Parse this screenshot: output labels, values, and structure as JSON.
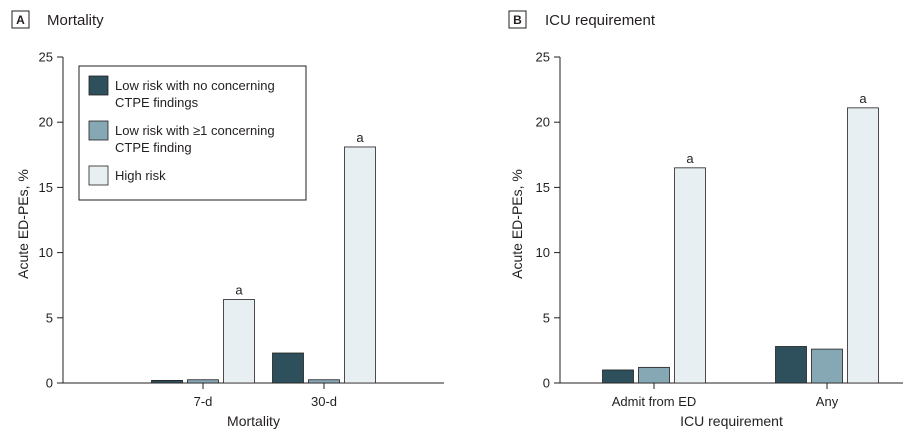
{
  "colors": {
    "low_no": "#2e4f5c",
    "low_one": "#86a8b5",
    "high": "#e8eff2",
    "stroke": "#231f20"
  },
  "chart_data": [
    {
      "type": "bar",
      "panel": "A",
      "title": "Mortality",
      "xlabel": "Mortality",
      "ylabel": "Acute ED-PEs, %",
      "ylim": [
        0,
        25
      ],
      "yticks": [
        0,
        5,
        10,
        15,
        20,
        25
      ],
      "categories": [
        "7-d",
        "30-d"
      ],
      "series": [
        {
          "name": "Low risk with no concerning CTPE findings",
          "values": [
            0.2,
            2.3
          ]
        },
        {
          "name": "Low risk with ≥1 concerning CTPE finding",
          "values": [
            0.25,
            0.25
          ]
        },
        {
          "name": "High risk",
          "values": [
            6.4,
            18.1
          ]
        }
      ],
      "annotations": [
        {
          "category": "7-d",
          "series": "High risk",
          "text": "a"
        },
        {
          "category": "30-d",
          "series": "High risk",
          "text": "a"
        }
      ],
      "legend": {
        "placement": "top-left",
        "items": [
          [
            "Low risk with no concerning",
            "CTPE findings"
          ],
          [
            "Low risk with ≥1 concerning",
            "CTPE finding"
          ],
          [
            "High risk"
          ]
        ]
      },
      "grid": false
    },
    {
      "type": "bar",
      "panel": "B",
      "title": "ICU requirement",
      "xlabel": "ICU requirement",
      "ylabel": "Acute ED-PEs, %",
      "ylim": [
        0,
        25
      ],
      "yticks": [
        0,
        5,
        10,
        15,
        20,
        25
      ],
      "categories": [
        "Admit from ED",
        "Any"
      ],
      "series": [
        {
          "name": "Low risk with no concerning CTPE findings",
          "values": [
            1.0,
            2.8
          ]
        },
        {
          "name": "Low risk with ≥1 concerning CTPE finding",
          "values": [
            1.2,
            2.6
          ]
        },
        {
          "name": "High risk",
          "values": [
            16.5,
            21.1
          ]
        }
      ],
      "annotations": [
        {
          "category": "Admit from ED",
          "series": "High risk",
          "text": "a"
        },
        {
          "category": "Any",
          "series": "High risk",
          "text": "a"
        }
      ],
      "grid": false
    }
  ]
}
